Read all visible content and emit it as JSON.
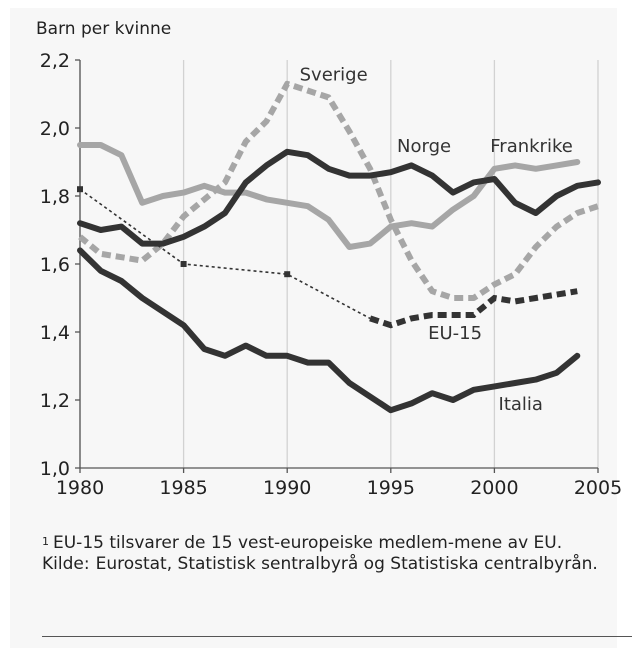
{
  "chart_data": {
    "type": "line",
    "ylabel": "Barn per kvinne",
    "xlabel": "",
    "xlim": [
      1980,
      2005
    ],
    "ylim": [
      1.0,
      2.2
    ],
    "xticks": [
      "1980",
      "1985",
      "1990",
      "1995",
      "2000",
      "2005"
    ],
    "yticks": [
      "1,0",
      "1,2",
      "1,4",
      "1,6",
      "1,8",
      "2,0",
      "2,2"
    ],
    "grid": "vertical",
    "series": [
      {
        "name": "Sverige",
        "style": "dashed-thick",
        "color": "#a6a6a6",
        "x": [
          1980,
          1981,
          1982,
          1983,
          1984,
          1985,
          1986,
          1987,
          1988,
          1989,
          1990,
          1991,
          1992,
          1993,
          1994,
          1995,
          1996,
          1997,
          1998,
          1999,
          2000,
          2001,
          2002,
          2003,
          2004,
          2005
        ],
        "y": [
          1.68,
          1.63,
          1.62,
          1.61,
          1.66,
          1.74,
          1.79,
          1.84,
          1.96,
          2.02,
          2.13,
          2.11,
          2.09,
          1.99,
          1.88,
          1.73,
          1.61,
          1.52,
          1.5,
          1.5,
          1.54,
          1.57,
          1.65,
          1.71,
          1.75,
          1.77
        ]
      },
      {
        "name": "Norge",
        "style": "solid-thick",
        "color": "#333333",
        "x": [
          1980,
          1981,
          1982,
          1983,
          1984,
          1985,
          1986,
          1987,
          1988,
          1989,
          1990,
          1991,
          1992,
          1993,
          1994,
          1995,
          1996,
          1997,
          1998,
          1999,
          2000,
          2001,
          2002,
          2003,
          2004,
          2005
        ],
        "y": [
          1.72,
          1.7,
          1.71,
          1.66,
          1.66,
          1.68,
          1.71,
          1.75,
          1.84,
          1.89,
          1.93,
          1.92,
          1.88,
          1.86,
          1.86,
          1.87,
          1.89,
          1.86,
          1.81,
          1.84,
          1.85,
          1.78,
          1.75,
          1.8,
          1.83,
          1.84
        ]
      },
      {
        "name": "Frankrike",
        "style": "solid-thick",
        "color": "#a6a6a6",
        "x": [
          1980,
          1981,
          1982,
          1983,
          1984,
          1985,
          1986,
          1987,
          1988,
          1989,
          1990,
          1991,
          1992,
          1993,
          1994,
          1995,
          1996,
          1997,
          1998,
          1999,
          2000,
          2001,
          2002,
          2003,
          2004
        ],
        "y": [
          1.95,
          1.95,
          1.92,
          1.78,
          1.8,
          1.81,
          1.83,
          1.81,
          1.81,
          1.79,
          1.78,
          1.77,
          1.73,
          1.65,
          1.66,
          1.71,
          1.72,
          1.71,
          1.76,
          1.8,
          1.88,
          1.89,
          1.88,
          1.89,
          1.9
        ]
      },
      {
        "name": "EU-15",
        "style": "dotted-thin-then-dashed-thick",
        "color": "#333333",
        "x": [
          1980,
          1985,
          1990,
          1994,
          1995,
          1996,
          1997,
          1998,
          1999,
          2000,
          2001,
          2002,
          2003,
          2004
        ],
        "y": [
          1.82,
          1.6,
          1.57,
          1.44,
          1.42,
          1.44,
          1.45,
          1.45,
          1.45,
          1.5,
          1.49,
          1.5,
          1.51,
          1.52
        ]
      },
      {
        "name": "Italia",
        "style": "solid-thick",
        "color": "#333333",
        "x": [
          1980,
          1981,
          1982,
          1983,
          1984,
          1985,
          1986,
          1987,
          1988,
          1989,
          1990,
          1991,
          1992,
          1993,
          1994,
          1995,
          1996,
          1997,
          1998,
          1999,
          2000,
          2001,
          2002,
          2003,
          2004
        ],
        "y": [
          1.64,
          1.58,
          1.55,
          1.5,
          1.46,
          1.42,
          1.35,
          1.33,
          1.36,
          1.33,
          1.33,
          1.31,
          1.31,
          1.25,
          1.21,
          1.17,
          1.19,
          1.22,
          1.2,
          1.23,
          1.24,
          1.25,
          1.26,
          1.28,
          1.33
        ]
      }
    ]
  },
  "footnote": {
    "marker": "1",
    "text": "EU-15 tilsvarer de 15 vest-europeiske medlem-mene av EU.",
    "source_label": "Kilde:",
    "source_text": "Eurostat, Statistisk sentralbyrå og Statistiska centralbyrån."
  }
}
